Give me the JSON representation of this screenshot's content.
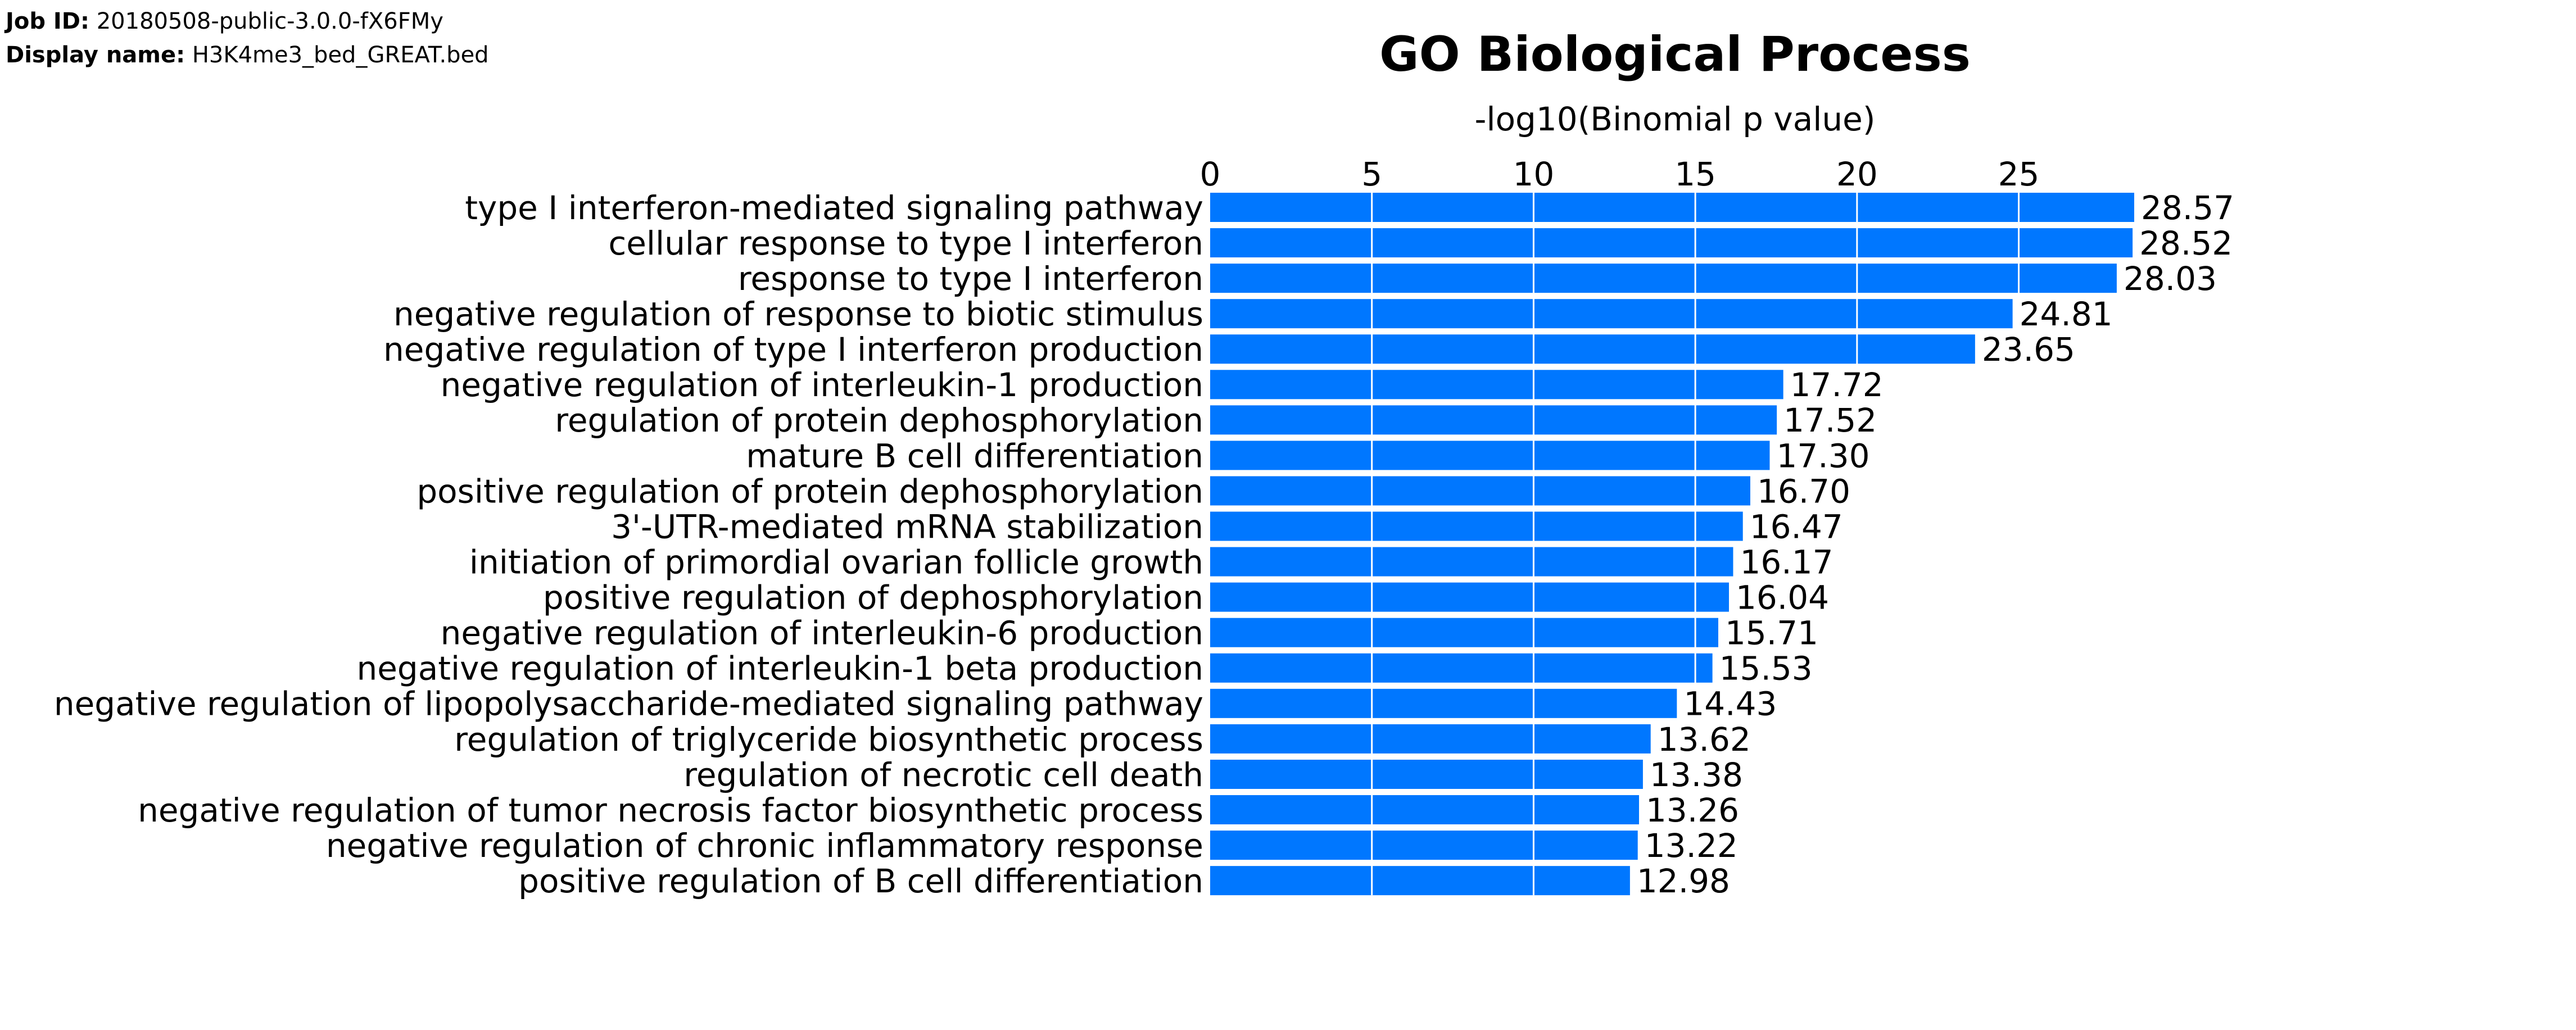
{
  "job": {
    "id_label": "Job ID:",
    "id_value": "20180508-public-3.0.0-fX6FMy",
    "display_label": "Display name:",
    "display_value": "H3K4me3_bed_GREAT.bed"
  },
  "chart_data": {
    "type": "bar",
    "orientation": "horizontal",
    "title": "GO Biological Process",
    "xlabel": "-log10(Binomial p value)",
    "ylabel": "",
    "xlim": [
      0,
      28.57
    ],
    "xticks": [
      0,
      5,
      10,
      15,
      20,
      25
    ],
    "grid": true,
    "bar_color": "#0077FF",
    "grid_color": "#FFFFFF",
    "categories": [
      "type I interferon-mediated signaling pathway",
      "cellular response to type I interferon",
      "response to type I interferon",
      "negative regulation of response to biotic stimulus",
      "negative regulation of type I interferon production",
      "negative regulation of interleukin-1 production",
      "regulation of protein dephosphorylation",
      "mature B cell differentiation",
      "positive regulation of protein dephosphorylation",
      "3'-UTR-mediated mRNA stabilization",
      "initiation of primordial ovarian follicle growth",
      "positive regulation of dephosphorylation",
      "negative regulation of interleukin-6 production",
      "negative regulation of interleukin-1 beta production",
      "negative regulation of lipopolysaccharide-mediated signaling pathway",
      "regulation of triglyceride biosynthetic process",
      "regulation of necrotic cell death",
      "negative regulation of tumor necrosis factor biosynthetic process",
      "negative regulation of chronic inflammatory response",
      "positive regulation of B cell differentiation"
    ],
    "values": [
      28.57,
      28.52,
      28.03,
      24.81,
      23.65,
      17.72,
      17.52,
      17.3,
      16.7,
      16.47,
      16.17,
      16.04,
      15.71,
      15.53,
      14.43,
      13.62,
      13.38,
      13.26,
      13.22,
      12.98
    ],
    "value_labels": [
      "28.57",
      "28.52",
      "28.03",
      "24.81",
      "23.65",
      "17.72",
      "17.52",
      "17.30",
      "16.70",
      "16.47",
      "16.17",
      "16.04",
      "15.71",
      "15.53",
      "14.43",
      "13.62",
      "13.38",
      "13.26",
      "13.22",
      "12.98"
    ]
  }
}
